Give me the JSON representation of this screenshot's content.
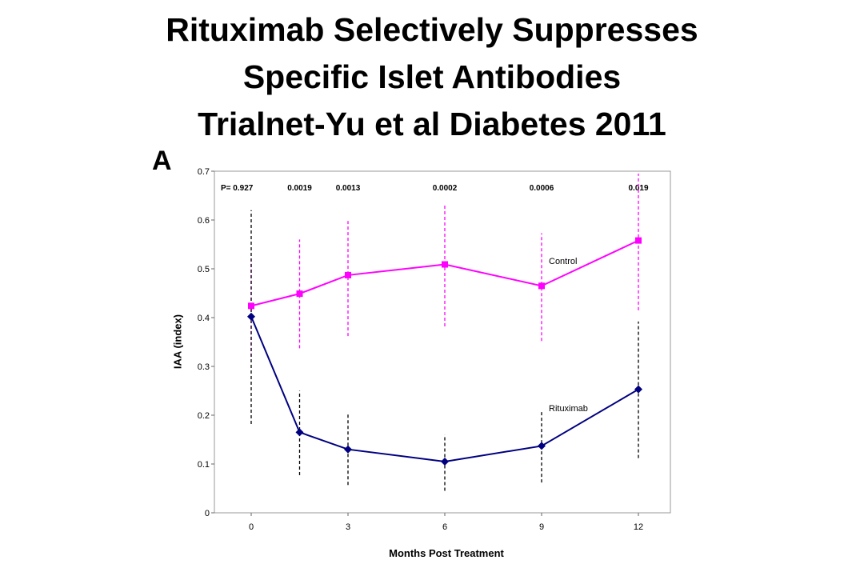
{
  "title_lines": [
    "Rituximab Selectively Suppresses",
    "Specific Islet Antibodies",
    "Trialnet-Yu et al Diabetes 2011"
  ],
  "chart_data": {
    "type": "line",
    "panel_label": "A",
    "xlabel": "Months Post Treatment",
    "ylabel": "IAA (index)",
    "ylim": [
      0,
      0.7
    ],
    "y_ticks": [
      "0",
      "0.1",
      "0.2",
      "0.3",
      "0.4",
      "0.5",
      "0.6",
      "0.7"
    ],
    "x_ticks": [
      "0",
      "3",
      "6",
      "9",
      "12"
    ],
    "x": [
      0,
      1.5,
      3,
      6,
      9,
      12
    ],
    "p_values": [
      "P= 0.927",
      "0.0019",
      "0.0013",
      "0.0002",
      "0.0006",
      "0.019"
    ],
    "grid": false,
    "series": [
      {
        "name": "Control",
        "color": "#ff00ff",
        "marker": "square",
        "values": [
          0.424,
          0.449,
          0.487,
          0.509,
          0.465,
          0.558
        ],
        "error_low": [
          0.32,
          0.337,
          0.362,
          0.382,
          0.352,
          0.415
        ],
        "error_high": [
          0.52,
          0.56,
          0.598,
          0.632,
          0.573,
          0.695
        ]
      },
      {
        "name": "Rituximab",
        "color": "#000080",
        "marker": "diamond",
        "values": [
          0.402,
          0.165,
          0.13,
          0.105,
          0.137,
          0.253
        ],
        "error_low": [
          0.182,
          0.077,
          0.057,
          0.045,
          0.062,
          0.112
        ],
        "error_high": [
          0.62,
          0.25,
          0.203,
          0.16,
          0.21,
          0.392
        ]
      }
    ]
  }
}
